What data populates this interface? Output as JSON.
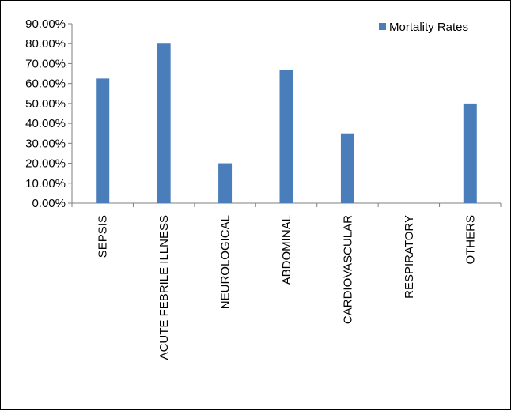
{
  "chart_data": {
    "type": "bar",
    "categories": [
      "SEPSIS",
      "ACUTE FEBRILE ILLNESS",
      "NEUROLOGICAL",
      "ABDOMINAL",
      "CARDIOVASCULAR",
      "RESPIRATORY",
      "OTHERS"
    ],
    "series": [
      {
        "name": "Mortality Rates",
        "values": [
          62.5,
          80.0,
          20.0,
          66.7,
          35.0,
          0.0,
          50.0
        ],
        "color": "#4a7ebb"
      }
    ],
    "ylim": [
      0,
      90
    ],
    "yticks": [
      "0.00%",
      "10.00%",
      "20.00%",
      "30.00%",
      "40.00%",
      "50.00%",
      "60.00%",
      "70.00%",
      "80.00%",
      "90.00%"
    ],
    "legend_position": "top-right",
    "grid": false,
    "axis_color": "#7f7f7f"
  }
}
